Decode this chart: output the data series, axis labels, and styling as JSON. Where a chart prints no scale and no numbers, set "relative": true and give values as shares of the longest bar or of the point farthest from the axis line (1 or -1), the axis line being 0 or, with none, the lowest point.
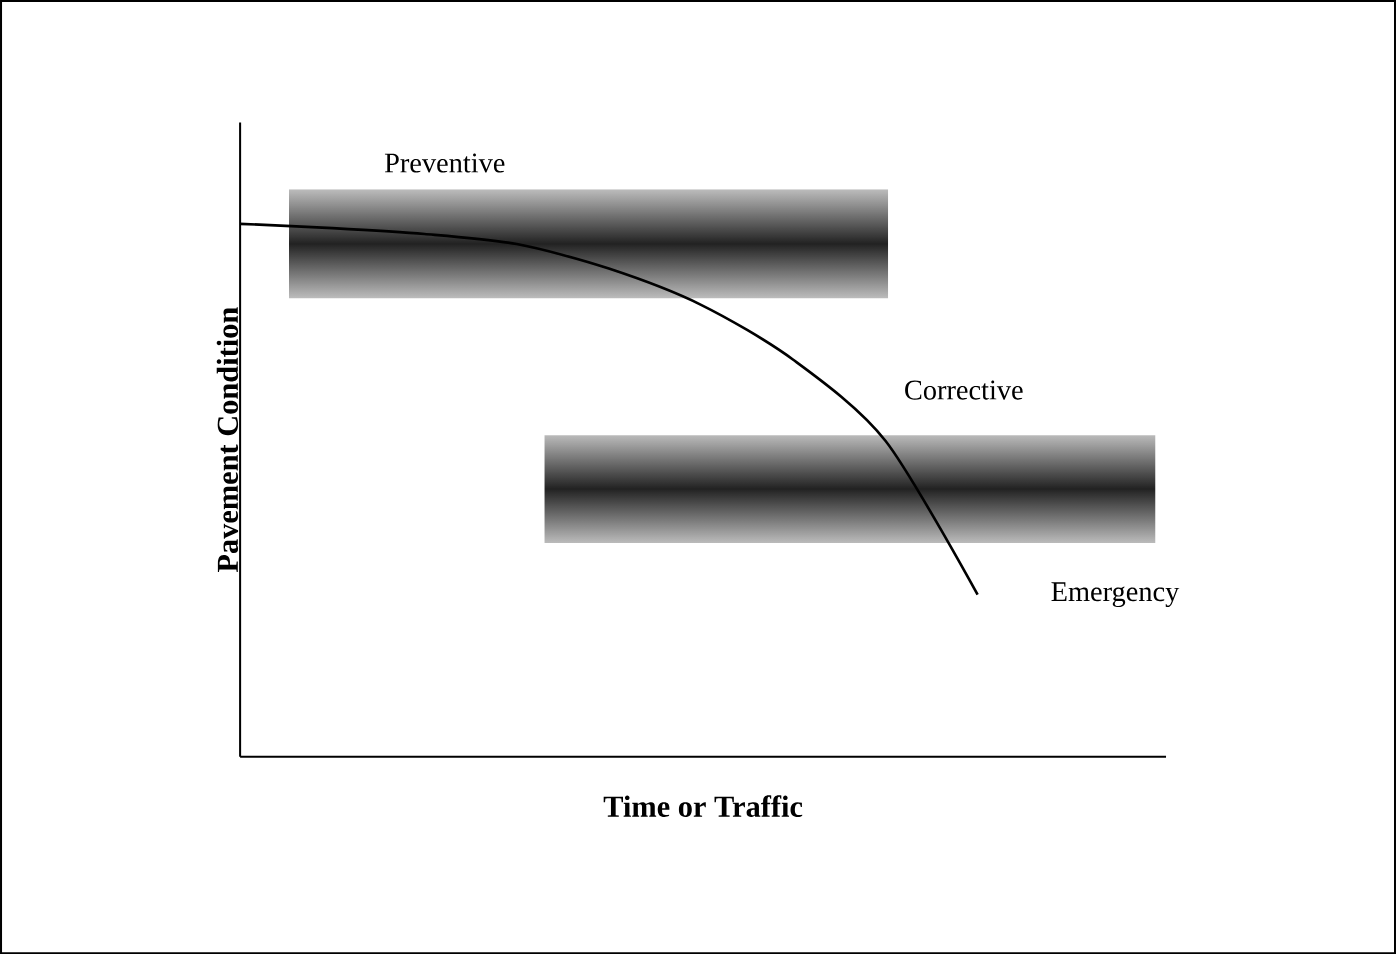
{
  "chart_data": {
    "type": "line",
    "relative": true,
    "xlabel": "Time or Traffic",
    "ylabel": "Pavement Condition",
    "categories": [
      null,
      null,
      null,
      null,
      null,
      null,
      null,
      null,
      null
    ],
    "series": [
      {
        "color": "#000000",
        "values": [
          1,
          0.992,
          0.981,
          0.962,
          0.916,
          0.848,
          0.745,
          0.593,
          0.304
        ]
      }
    ],
    "bands": [
      {
        "axis": "y",
        "from": 0.86,
        "to": 1.065,
        "color": "#222222"
      },
      {
        "axis": "y",
        "from": 0.4,
        "to": 0.605,
        "color": "#222222"
      }
    ],
    "annotations": [
      "Preventive",
      "Corrective",
      "Emergency"
    ]
  }
}
